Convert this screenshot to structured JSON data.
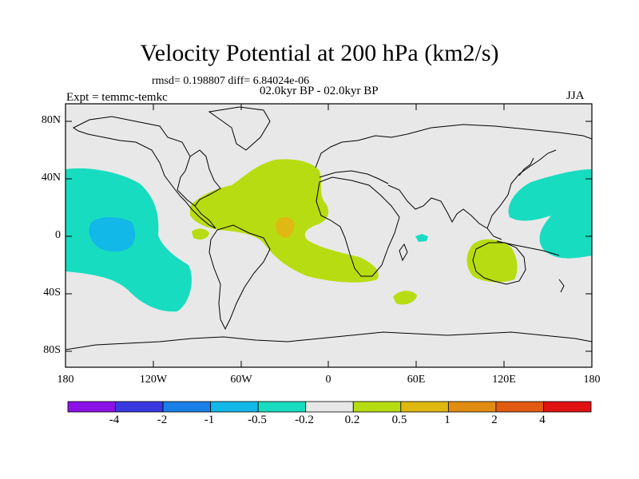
{
  "title": "Velocity Potential at 200 hPa (km2/s)",
  "stats_line": "rmsd= 0.198807 diff= 6.84024e-06",
  "period_line": "02.0kyr BP - 02.0kyr BP",
  "experiment_line": "Expt = temmc-temkc",
  "season": "JJA",
  "y_ticks": [
    "80N",
    "40N",
    "0",
    "40S",
    "80S"
  ],
  "x_ticks": [
    "180",
    "120W",
    "60W",
    "0",
    "60E",
    "120E",
    "180"
  ],
  "colorbar": {
    "labels": [
      "-4",
      "-2",
      "-1",
      "-0.5",
      "-0.2",
      "0.2",
      "0.5",
      "1",
      "2",
      "4"
    ],
    "colors": [
      "#8a12e6",
      "#3a38e0",
      "#1a7fe6",
      "#12b8e8",
      "#18dcc0",
      "#e8e8e8",
      "#b8dc12",
      "#e0b812",
      "#e08c12",
      "#e05a12",
      "#e01212"
    ]
  },
  "map_colors": {
    "background": "#e8e8e8",
    "neg_02": "#18dcc0",
    "neg_05": "#12b8e8",
    "pos_02": "#b8dc12",
    "pos_05": "#e0b812"
  }
}
